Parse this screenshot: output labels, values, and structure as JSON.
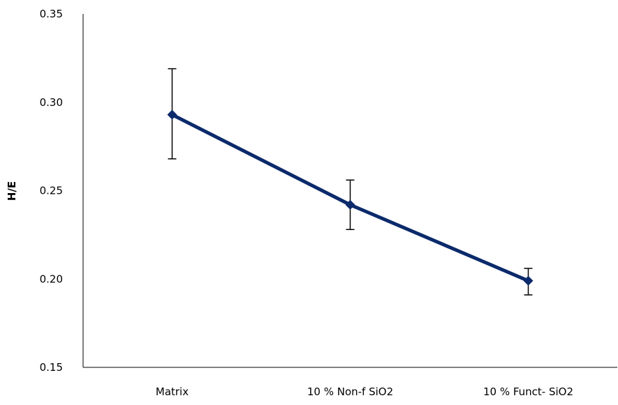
{
  "chart_data": {
    "type": "line",
    "title": "",
    "xlabel": "",
    "ylabel": "H/E",
    "categories": [
      "Matrix",
      "10 % Non-f SiO2",
      "10 % Funct- SiO2"
    ],
    "series": [
      {
        "values": [
          0.293,
          0.242,
          0.199
        ],
        "error_low": [
          0.268,
          0.228,
          0.191
        ],
        "error_high": [
          0.319,
          0.256,
          0.206
        ]
      }
    ],
    "ylim": [
      0.15,
      0.35
    ],
    "yticks": [
      "0.15",
      "0.20",
      "0.25",
      "0.30",
      "0.35"
    ],
    "grid": false,
    "legend": "none",
    "line_color": "#0b2a6b",
    "marker": "diamond"
  }
}
